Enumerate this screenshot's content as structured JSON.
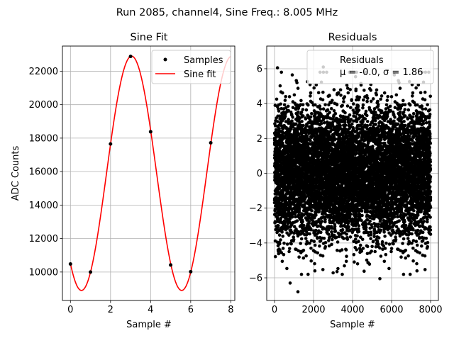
{
  "figure": {
    "suptitle": "Run 2085, channel4, Sine Freq.: 8.005 MHz"
  },
  "chart_data": [
    {
      "type": "line",
      "title": "Sine Fit",
      "xlabel": "Sample #",
      "ylabel": "ADC Counts",
      "xlim": [
        -0.4,
        8.2
      ],
      "ylim": [
        8300,
        23500
      ],
      "x_ticks": [
        "0",
        "2",
        "4",
        "6",
        "8"
      ],
      "y_ticks": [
        "10000",
        "12000",
        "14000",
        "16000",
        "18000",
        "20000",
        "22000"
      ],
      "grid": true,
      "legend_position": "top-right",
      "series": [
        {
          "name": "Samples",
          "style": "markers",
          "color": "#000000",
          "x": [
            0,
            1,
            2,
            3,
            4,
            5,
            6,
            7
          ],
          "y": [
            10480,
            10000,
            17650,
            22880,
            18380,
            10420,
            10020,
            17720
          ]
        },
        {
          "name": "Sine fit",
          "style": "line",
          "color": "#ff0000",
          "model": "sine",
          "x_range": [
            0,
            8
          ],
          "offset": 15900,
          "amplitude": 7000,
          "period": 5,
          "peak_x": 3.05
        }
      ]
    },
    {
      "type": "scatter",
      "title": "Residuals",
      "xlabel": "Sample #",
      "xlim": [
        -400,
        8400
      ],
      "ylim": [
        -7.3,
        7.3
      ],
      "x_ticks": [
        "0",
        "2000",
        "4000",
        "6000",
        "8000"
      ],
      "y_ticks": [
        "−6",
        "−4",
        "−2",
        "0",
        "2",
        "4",
        "6"
      ],
      "grid": true,
      "legend_position": "top-right",
      "legend_label": "Residuals",
      "legend_stats": "μ = -0.0, σ = 1.86",
      "series": [
        {
          "name": "Residuals",
          "color": "#000000",
          "n_points": 8000,
          "x_range": [
            0,
            8000
          ],
          "mean": 0.0,
          "std": 1.86,
          "notable_points": [
            {
              "x": 150,
              "y": 6.05
            },
            {
              "x": 2500,
              "y": 6.1
            },
            {
              "x": 1200,
              "y": -6.8
            },
            {
              "x": 800,
              "y": -6.3
            },
            {
              "x": 5400,
              "y": -6.05
            }
          ]
        }
      ]
    }
  ]
}
